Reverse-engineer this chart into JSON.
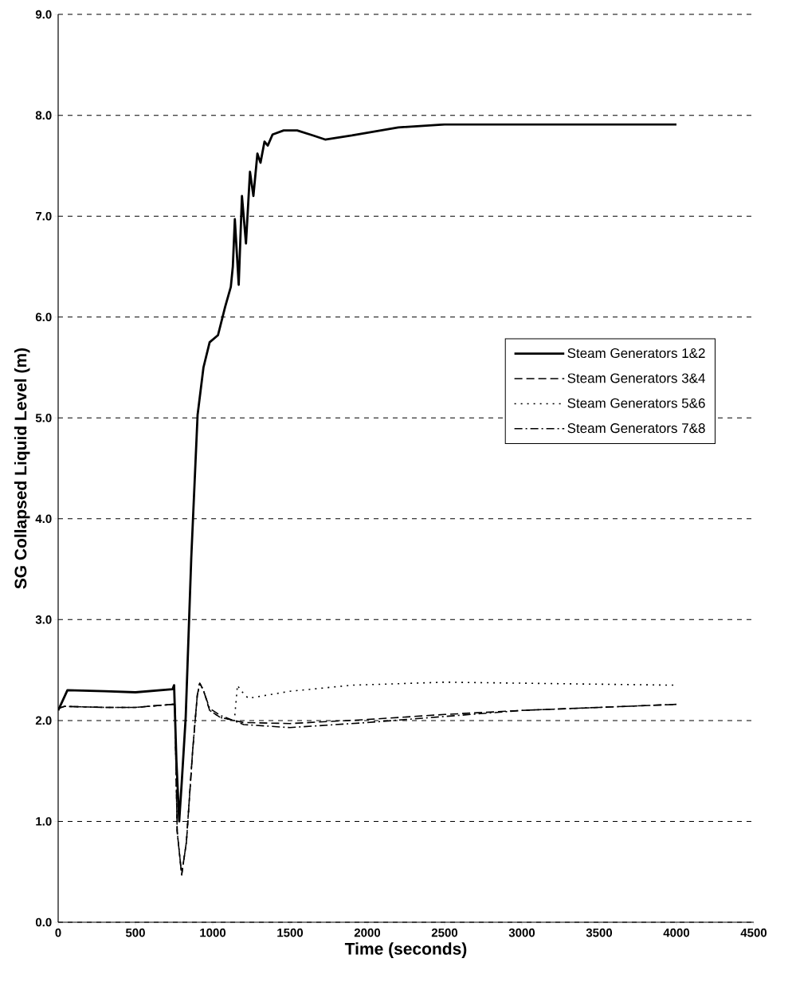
{
  "chart_data": {
    "type": "line",
    "xlabel": "Time (seconds)",
    "ylabel": "SG Collapsed Liquid Level (m)",
    "xlim": [
      0,
      4500
    ],
    "xticks": [
      0,
      500,
      1000,
      1500,
      2000,
      2500,
      3000,
      3500,
      4000,
      4500
    ],
    "ylim": [
      0,
      9
    ],
    "yticks": [
      {
        "value": 0,
        "label": "0.0"
      },
      {
        "value": 1,
        "label": "1.0"
      },
      {
        "value": 2,
        "label": "2.0"
      },
      {
        "value": 3,
        "label": "3.0"
      },
      {
        "value": 4,
        "label": "4.0"
      },
      {
        "value": 5,
        "label": "5.0"
      },
      {
        "value": 6,
        "label": "6.0"
      },
      {
        "value": 7,
        "label": "7.0"
      },
      {
        "value": 8,
        "label": "8.0"
      },
      {
        "value": 9,
        "label": "9.0"
      }
    ],
    "grid": "y",
    "legend": "right",
    "marker": "none",
    "series": [
      {
        "name": "Steam Generators 1&2",
        "color": "#000000",
        "line_style": "solid",
        "x": [
          0,
          30,
          60,
          300,
          500,
          740,
          750,
          765,
          783,
          800,
          825,
          861,
          902,
          940,
          980,
          1034,
          1080,
          1117,
          1130,
          1143,
          1168,
          1189,
          1215,
          1241,
          1263,
          1289,
          1309,
          1335,
          1356,
          1387,
          1459,
          1546,
          1650,
          1727,
          1900,
          2200,
          2500,
          3000,
          3500,
          4000
        ],
        "values": [
          2.1,
          2.2,
          2.3,
          2.29,
          2.28,
          2.31,
          2.35,
          1.6,
          1.0,
          1.4,
          2.03,
          3.61,
          5.03,
          5.5,
          5.75,
          5.82,
          6.1,
          6.3,
          6.5,
          6.97,
          6.32,
          7.2,
          6.73,
          7.44,
          7.2,
          7.62,
          7.53,
          7.74,
          7.7,
          7.81,
          7.85,
          7.85,
          7.8,
          7.76,
          7.8,
          7.88,
          7.91,
          7.91,
          7.91,
          7.91
        ]
      },
      {
        "name": "Steam Generators 3&4",
        "color": "#000000",
        "line_style": "dashed",
        "x": [
          0,
          40,
          300,
          500,
          740,
          755,
          770,
          799,
          830,
          870,
          900,
          916,
          940,
          980,
          1050,
          1200,
          1500,
          2000,
          2500,
          3000,
          3500,
          4000
        ],
        "values": [
          2.12,
          2.14,
          2.13,
          2.13,
          2.16,
          2.16,
          0.9,
          0.47,
          0.8,
          1.7,
          2.25,
          2.37,
          2.3,
          2.1,
          2.03,
          1.98,
          1.97,
          2.01,
          2.06,
          2.1,
          2.13,
          2.16
        ]
      },
      {
        "name": "Steam Generators 5&6",
        "color": "#000000",
        "line_style": "dotted",
        "x": [
          0,
          40,
          300,
          500,
          740,
          755,
          770,
          799,
          830,
          870,
          900,
          916,
          940,
          980,
          1050,
          1140,
          1160,
          1180,
          1230,
          1500,
          1900,
          2500,
          3000,
          3500,
          4000
        ],
        "values": [
          2.12,
          2.14,
          2.13,
          2.13,
          2.16,
          2.16,
          0.9,
          0.47,
          0.8,
          1.7,
          2.25,
          2.37,
          2.3,
          2.1,
          2.03,
          2.0,
          2.35,
          2.3,
          2.22,
          2.29,
          2.35,
          2.38,
          2.37,
          2.36,
          2.35
        ]
      },
      {
        "name": "Steam Generators 7&8",
        "color": "#000000",
        "line_style": "dashdot",
        "x": [
          0,
          40,
          300,
          500,
          740,
          755,
          770,
          799,
          830,
          870,
          900,
          916,
          940,
          980,
          1050,
          1200,
          1500,
          2000,
          2500,
          3000,
          3500,
          4000
        ],
        "values": [
          2.12,
          2.14,
          2.13,
          2.13,
          2.16,
          2.16,
          0.9,
          0.47,
          0.8,
          1.7,
          2.25,
          2.37,
          2.3,
          2.12,
          2.05,
          1.96,
          1.93,
          1.98,
          2.04,
          2.1,
          2.13,
          2.16
        ]
      }
    ]
  }
}
